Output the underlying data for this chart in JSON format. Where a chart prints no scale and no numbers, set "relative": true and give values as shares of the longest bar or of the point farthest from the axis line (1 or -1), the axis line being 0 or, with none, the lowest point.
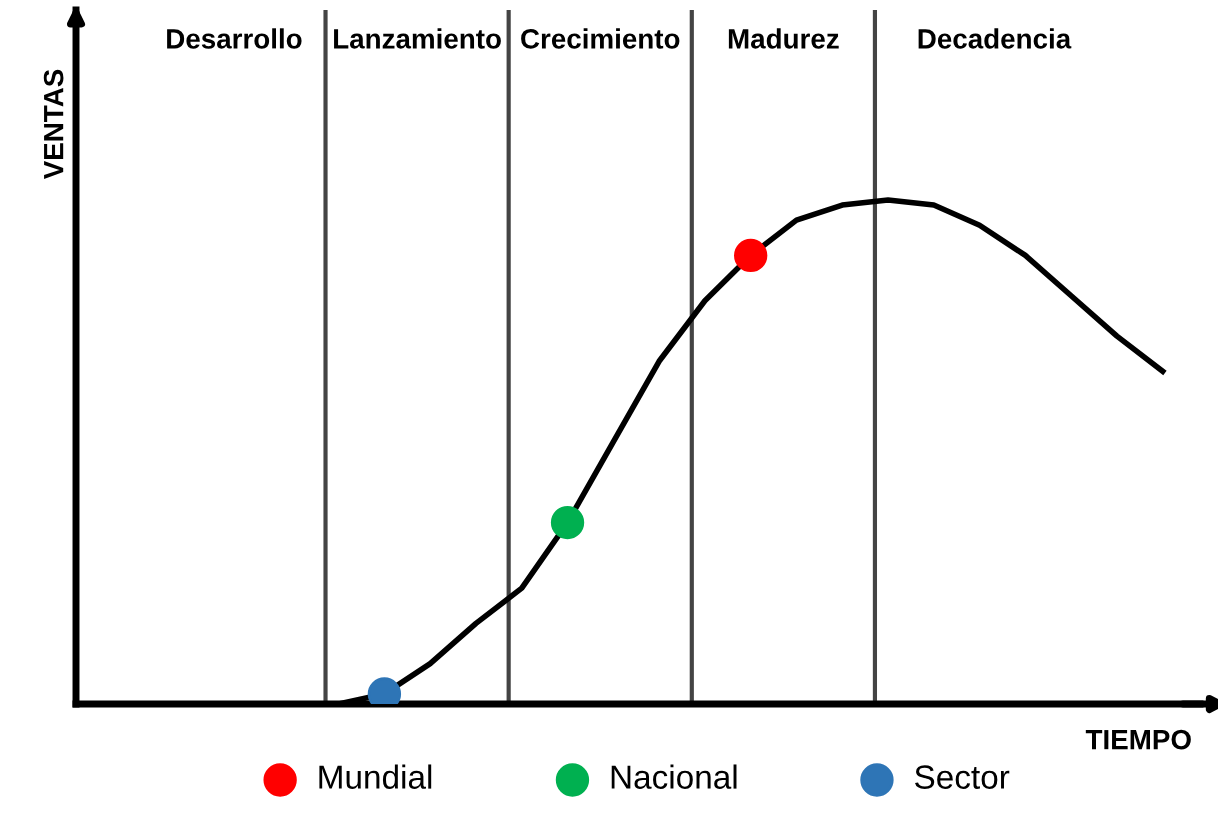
{
  "chart_data": {
    "type": "line",
    "relative": true,
    "xlabel": "TIEMPO",
    "categories": [
      null,
      null,
      null,
      null,
      null,
      null,
      null,
      null,
      null,
      null,
      null,
      null,
      null,
      null,
      null,
      null,
      null,
      null,
      null
    ],
    "series": [
      {
        "color": "#000000",
        "values": [
          0,
          0.02,
          0.08,
          0.16,
          0.23,
          0.36,
          0.52,
          0.68,
          0.8,
          0.89,
          0.96,
          0.99,
          1,
          0.99,
          0.95,
          0.89,
          0.81,
          0.73,
          0.66
        ]
      }
    ],
    "annotations": [
      "Desarrollo",
      "Lanzamiento",
      "Crecimiento",
      "Madurez",
      "Decadencia",
      "Mundial",
      "Nacional",
      "Sector",
      "VENTAS"
    ],
    "grid": false
  }
}
